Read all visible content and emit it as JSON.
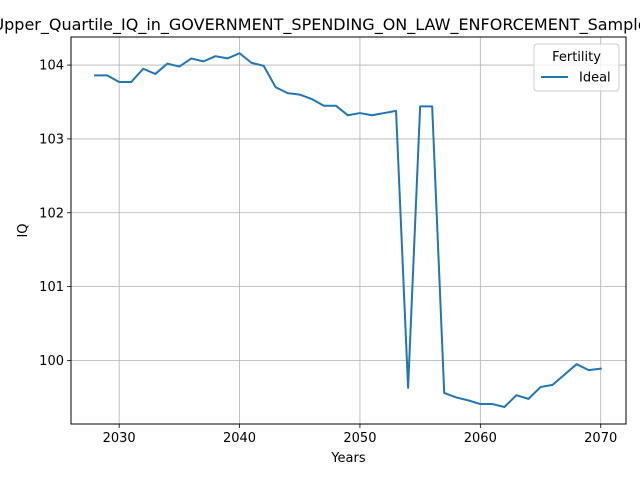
{
  "chart_data": {
    "type": "line",
    "title": "Upper_Quartile_IQ_in_GOVERNMENT_SPENDING_ON_LAW_ENFORCEMENT_Sample",
    "xlabel": "Years",
    "ylabel": "IQ",
    "xlim": [
      2026.0,
      2072.1
    ],
    "ylim": [
      99.14,
      104.38
    ],
    "xticks": [
      2030,
      2040,
      2050,
      2060,
      2070
    ],
    "yticks": [
      100,
      101,
      102,
      103,
      104
    ],
    "grid": true,
    "legend": {
      "title": "Fertility",
      "placement": "top-right"
    },
    "series": [
      {
        "name": "Ideal",
        "color": "#1f77b4",
        "x": [
          2028,
          2029,
          2030,
          2031,
          2032,
          2033,
          2034,
          2035,
          2036,
          2037,
          2038,
          2039,
          2040,
          2041,
          2042,
          2043,
          2044,
          2045,
          2046,
          2047,
          2048,
          2049,
          2050,
          2051,
          2052,
          2053,
          2054,
          2055,
          2056,
          2057,
          2058,
          2059,
          2060,
          2061,
          2062,
          2063,
          2064,
          2065,
          2066,
          2067,
          2068,
          2069,
          2070
        ],
        "y": [
          103.86,
          103.86,
          103.77,
          103.77,
          103.95,
          103.88,
          104.02,
          103.98,
          104.09,
          104.05,
          104.12,
          104.09,
          104.16,
          104.03,
          103.99,
          103.7,
          103.62,
          103.6,
          103.54,
          103.45,
          103.45,
          103.32,
          103.35,
          103.32,
          103.35,
          103.38,
          99.63,
          103.44,
          103.44,
          99.56,
          99.5,
          99.46,
          99.41,
          99.41,
          99.37,
          99.53,
          99.48,
          99.64,
          99.67,
          99.81,
          99.95,
          99.87,
          99.89
        ]
      }
    ]
  }
}
